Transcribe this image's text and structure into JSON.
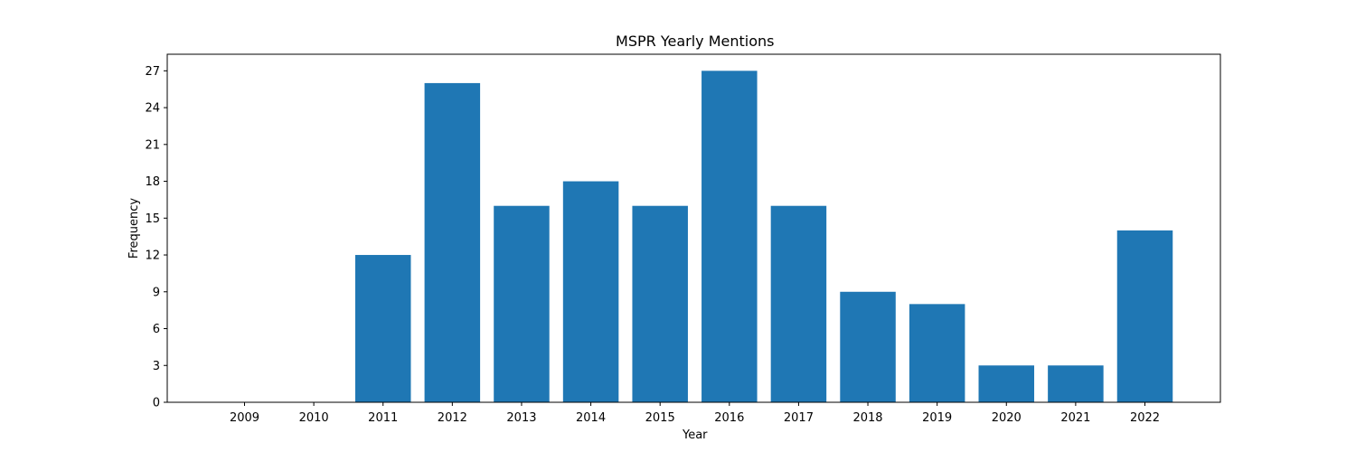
{
  "chart_data": {
    "type": "bar",
    "title": "MSPR Yearly Mentions",
    "xlabel": "Year",
    "ylabel": "Frequency",
    "categories": [
      "2009",
      "2010",
      "2011",
      "2012",
      "2013",
      "2014",
      "2015",
      "2016",
      "2017",
      "2018",
      "2019",
      "2020",
      "2021",
      "2022"
    ],
    "values": [
      0,
      0,
      12,
      26,
      16,
      18,
      16,
      27,
      16,
      9,
      8,
      3,
      3,
      14
    ],
    "yticks": [
      0,
      3,
      6,
      9,
      12,
      15,
      18,
      21,
      24,
      27
    ],
    "ylim": [
      0,
      28.35
    ],
    "bar_color": "#1f77b4",
    "grid": false,
    "legend": "none"
  }
}
